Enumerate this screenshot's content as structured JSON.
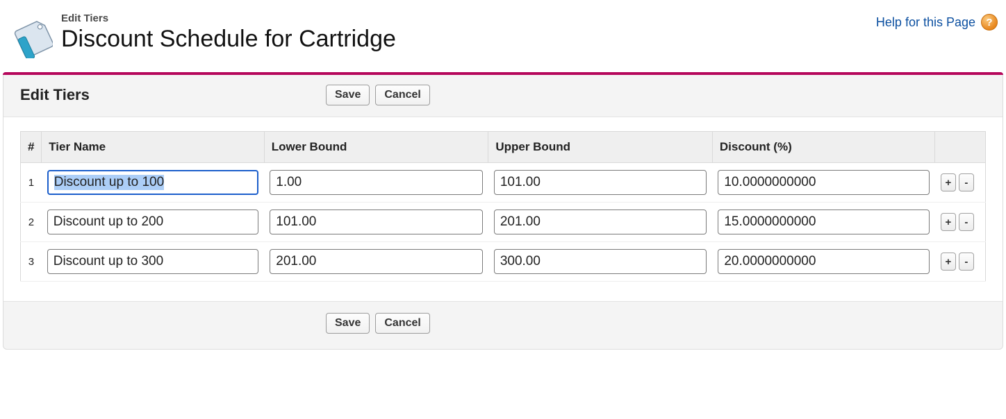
{
  "header": {
    "eyebrow": "Edit Tiers",
    "title": "Discount Schedule for Cartridge",
    "help_label": "Help for this Page",
    "help_glyph": "?",
    "accent_color": "#b5075b"
  },
  "toolbar": {
    "panel_title": "Edit Tiers",
    "save_label": "Save",
    "cancel_label": "Cancel"
  },
  "columns": {
    "index": "#",
    "name": "Tier Name",
    "lower": "Lower Bound",
    "upper": "Upper Bound",
    "discount": "Discount (%)"
  },
  "rows": [
    {
      "index": "1",
      "name": "Discount up to 100",
      "lower": "1.00",
      "upper": "101.00",
      "discount": "10.0000000000",
      "focused": true
    },
    {
      "index": "2",
      "name": "Discount up to 200",
      "lower": "101.00",
      "upper": "201.00",
      "discount": "15.0000000000",
      "focused": false
    },
    {
      "index": "3",
      "name": "Discount up to 300",
      "lower": "201.00",
      "upper": "300.00",
      "discount": "20.0000000000",
      "focused": false
    }
  ],
  "row_buttons": {
    "add": "+",
    "remove": "-"
  },
  "icon": {
    "tag_fill": "#dbe5ef",
    "tag_stroke": "#7e93a8",
    "tape_fill": "#2da3c9"
  }
}
